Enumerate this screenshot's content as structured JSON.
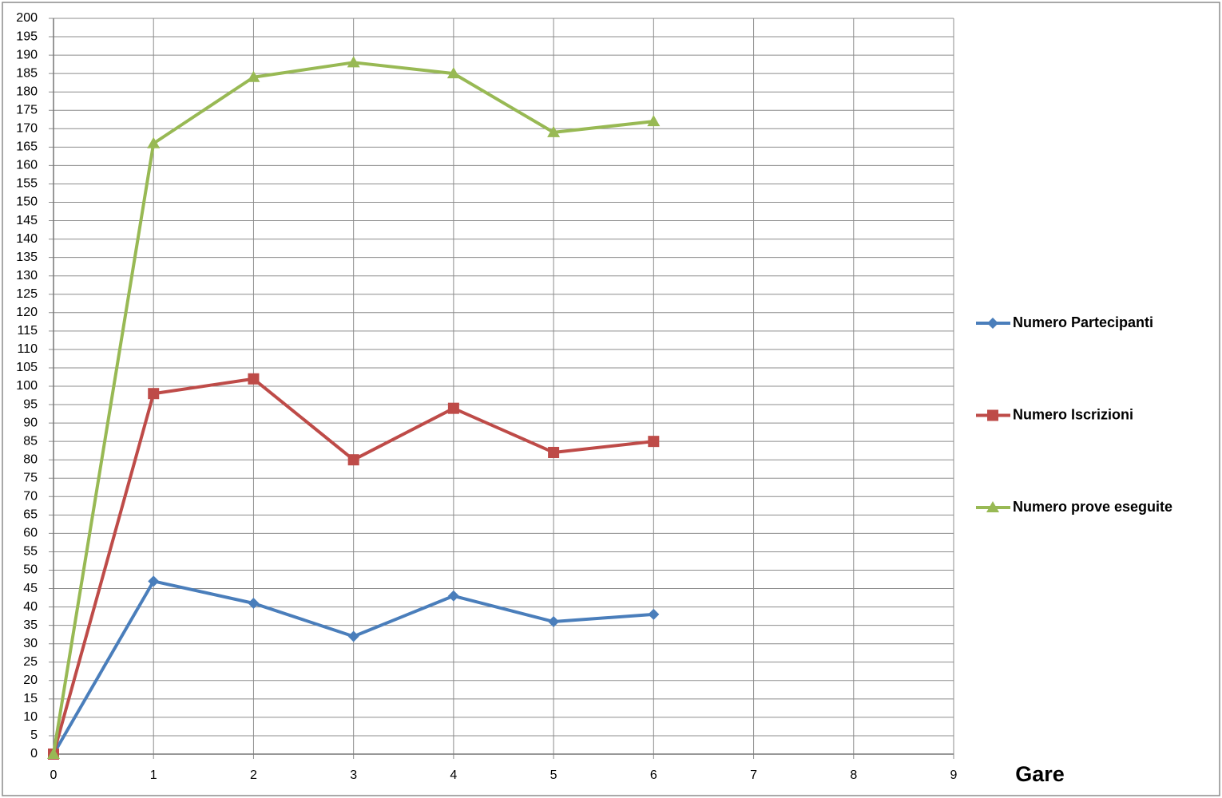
{
  "chart_data": {
    "type": "line",
    "x_title": "Gare",
    "x": [
      0,
      1,
      2,
      3,
      4,
      5,
      6
    ],
    "series": [
      {
        "name": "Numero Partecipanti",
        "color": "#4a7ebb",
        "marker": "diamond",
        "values": [
          0,
          47,
          41,
          32,
          43,
          36,
          38
        ]
      },
      {
        "name": "Numero Iscrizioni",
        "color": "#be4b48",
        "marker": "square",
        "values": [
          0,
          98,
          102,
          80,
          94,
          82,
          85
        ]
      },
      {
        "name": "Numero prove eseguite",
        "color": "#98b954",
        "marker": "triangle",
        "values": [
          0,
          166,
          184,
          188,
          185,
          169,
          172
        ]
      }
    ],
    "xlim": [
      0,
      9
    ],
    "xticks": [
      0,
      1,
      2,
      3,
      4,
      5,
      6,
      7,
      8,
      9
    ],
    "ylim": [
      0,
      200
    ],
    "yticks": [
      0,
      5,
      10,
      15,
      20,
      25,
      30,
      35,
      40,
      45,
      50,
      55,
      60,
      65,
      70,
      75,
      80,
      85,
      90,
      95,
      100,
      105,
      110,
      115,
      120,
      125,
      130,
      135,
      140,
      145,
      150,
      155,
      160,
      165,
      170,
      175,
      180,
      185,
      190,
      195,
      200
    ],
    "grid": true,
    "legend": "right"
  }
}
